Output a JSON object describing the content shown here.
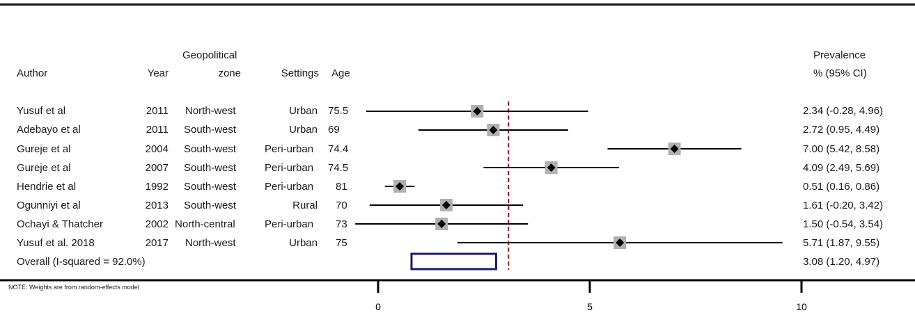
{
  "headers": {
    "author": "Author",
    "year": "Year",
    "zone_line1": "Geopolitical",
    "zone_line2": "zone",
    "settings": "Settings",
    "age": "Age",
    "prev_line1": "Prevalence",
    "prev_line2": "% (95% CI)"
  },
  "rows": [
    {
      "author": "Yusuf et al",
      "year": "2011",
      "zone": "North-west",
      "setting": "Urban",
      "age": "75.5",
      "ci_text": "2.34 (-0.28, 4.96)"
    },
    {
      "author": "Adebayo et al",
      "year": "2011",
      "zone": "South-west",
      "setting": "Urban",
      "age": "69",
      "ci_text": "2.72 (0.95, 4.49)"
    },
    {
      "author": "Gureje et al",
      "year": "2004",
      "zone": "South-west",
      "setting": "Peri-urban",
      "age": "74.4",
      "ci_text": "7.00 (5.42, 8.58)"
    },
    {
      "author": "Gureje et al",
      "year": "2007",
      "zone": "South-west",
      "setting": "Peri-urban",
      "age": "74.5",
      "ci_text": "4.09 (2.49, 5.69)"
    },
    {
      "author": "Hendrie et al",
      "year": "1992",
      "zone": "South-west",
      "setting": "Peri-urban",
      "age": "81",
      "ci_text": "0.51 (0.16, 0.86)"
    },
    {
      "author": "Ogunniyi et al",
      "year": "2013",
      "zone": "South-west",
      "setting": "Rural",
      "age": "70",
      "ci_text": "1.61 (-0.20, 3.42)"
    },
    {
      "author": "Ochayi & Thatcher",
      "year": "2002",
      "zone": "North-central",
      "setting": "Peri-urban",
      "age": "73",
      "ci_text": "1.50 (-0.54, 3.54)"
    },
    {
      "author": "Yusuf et al. 2018",
      "year": "2017",
      "zone": "North-west",
      "setting": "Urban",
      "age": "75",
      "ci_text": "5.71 (1.87, 9.55)"
    }
  ],
  "overall": {
    "label": "Overall  (I-squared = 92.0%)",
    "ci_text": "3.08 (1.20, 4.97)"
  },
  "note": "NOTE: Weights are from random-effects model",
  "colors": {
    "reference_line": "#8b1a1a",
    "overall_box": "#1a1a6e",
    "weight_box": "#b0b0b0",
    "point": "#000000"
  },
  "chart_data": {
    "type": "forest",
    "x_ticks": [
      "0",
      "5",
      "10"
    ],
    "xlim": [
      -0.3,
      10
    ],
    "reference_line": 3.08,
    "studies": [
      {
        "est": 2.34,
        "lo": -0.28,
        "hi": 4.96
      },
      {
        "est": 2.72,
        "lo": 0.95,
        "hi": 4.49
      },
      {
        "est": 7.0,
        "lo": 5.42,
        "hi": 8.58
      },
      {
        "est": 4.09,
        "lo": 2.49,
        "hi": 5.69
      },
      {
        "est": 0.51,
        "lo": 0.16,
        "hi": 0.86
      },
      {
        "est": 1.61,
        "lo": -0.2,
        "hi": 3.42
      },
      {
        "est": 1.5,
        "lo": -0.54,
        "hi": 3.54
      },
      {
        "est": 5.71,
        "lo": 1.87,
        "hi": 9.55
      }
    ],
    "overall": {
      "est": 3.08,
      "lo": 1.2,
      "hi": 4.97
    }
  }
}
